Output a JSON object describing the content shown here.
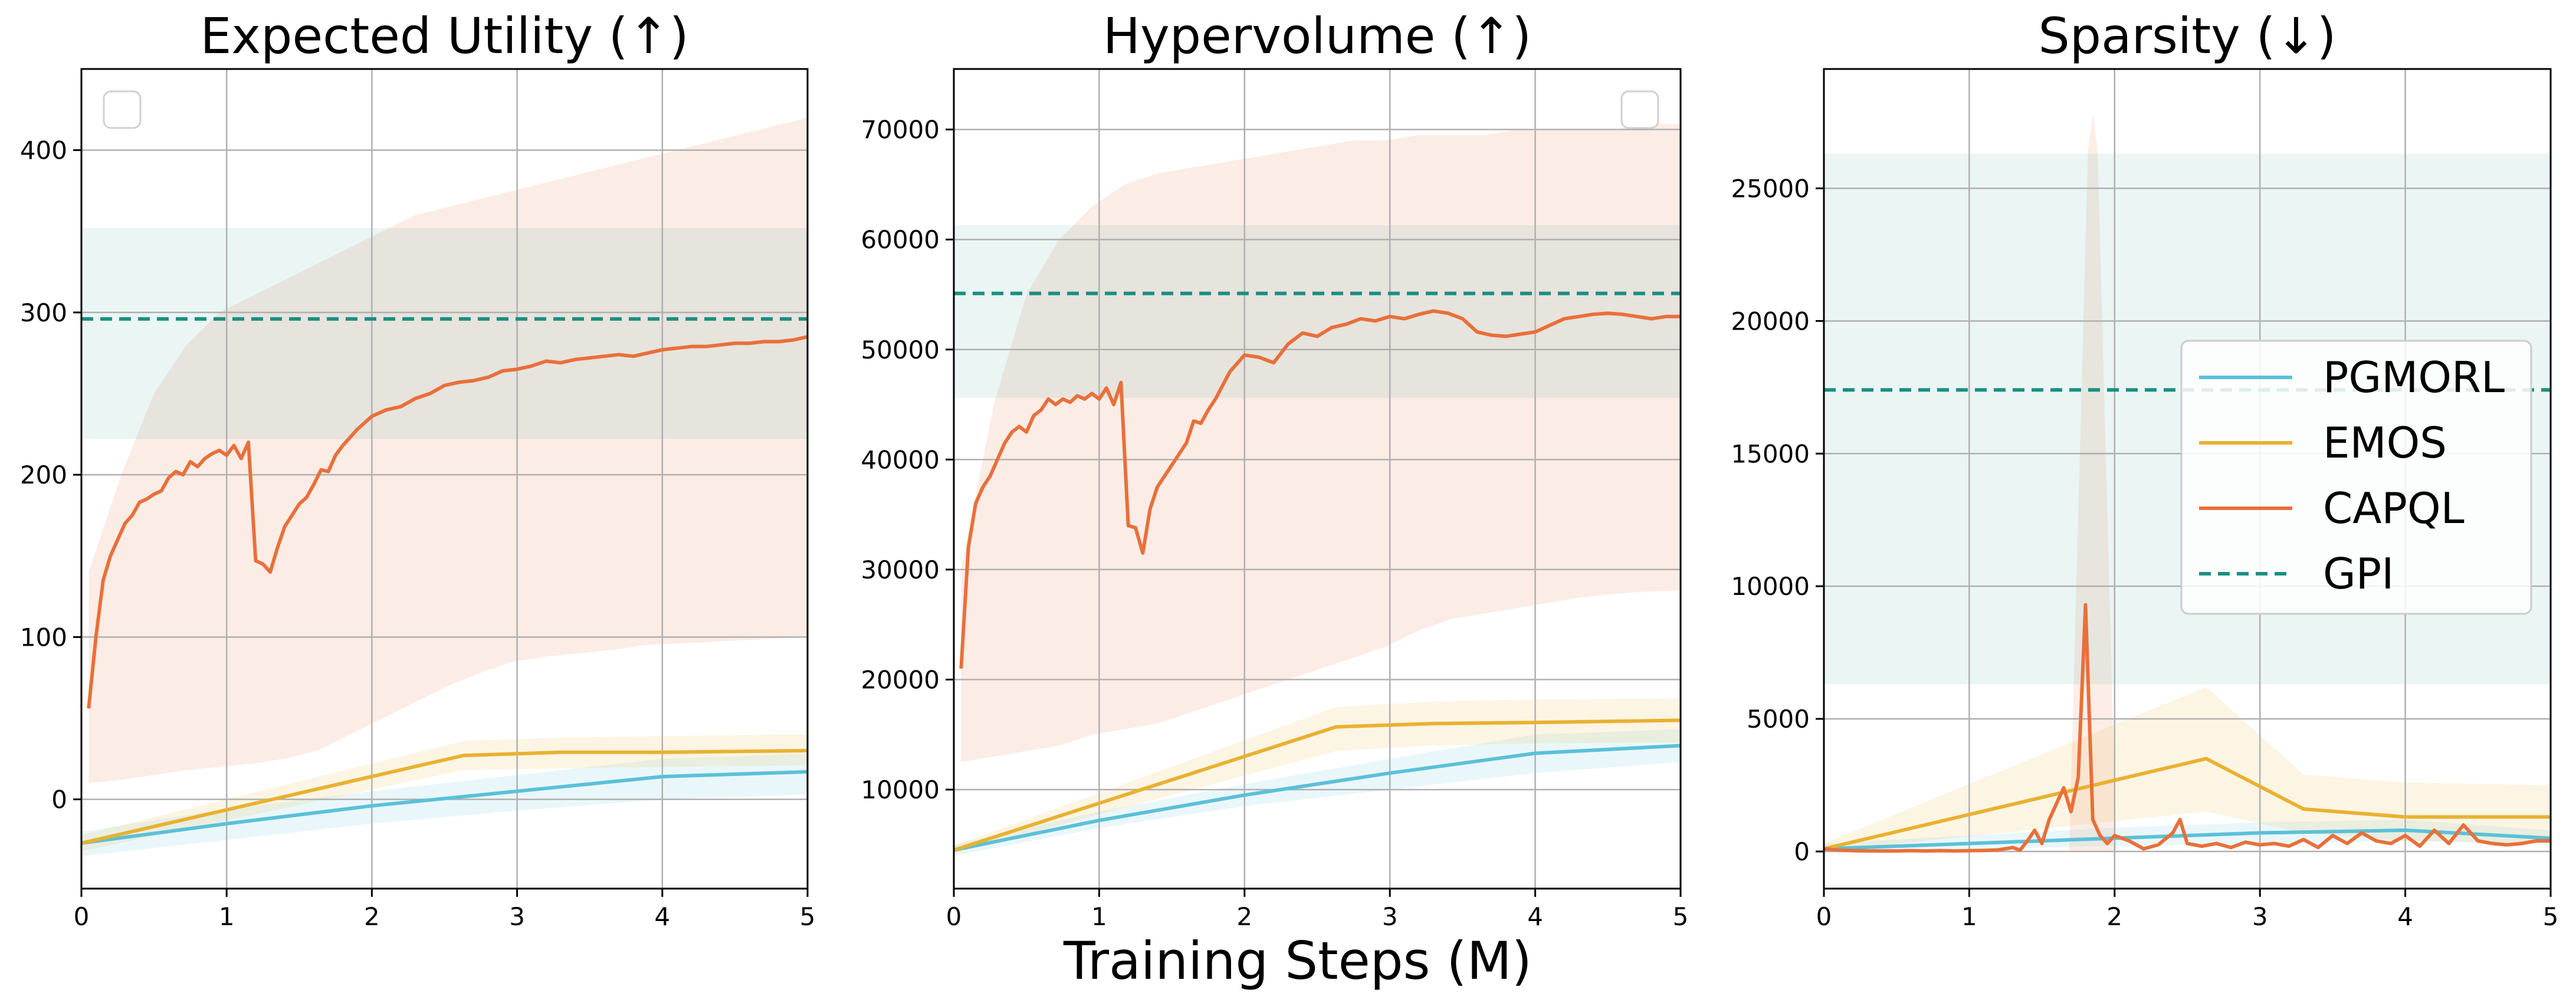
{
  "figure": {
    "xlabel": "Training Steps (M)"
  },
  "legend": {
    "entries": [
      {
        "label": "PGMORL",
        "color": "#5bc0d8",
        "style": "solid"
      },
      {
        "label": "EMOS",
        "color": "#e9b130",
        "style": "solid"
      },
      {
        "label": "CAPQL",
        "color": "#e8703a",
        "style": "solid"
      },
      {
        "label": "GPI",
        "color": "#1a8f80",
        "style": "dashed"
      }
    ]
  },
  "chart_data": [
    {
      "type": "line",
      "title": "Expected Utility (↑)",
      "xlabel": "",
      "ylabel": "",
      "xlim": [
        0,
        5
      ],
      "ylim": [
        -55,
        450
      ],
      "xticks": [
        0,
        1,
        2,
        3,
        4,
        5
      ],
      "yticks": [
        0,
        100,
        200,
        300,
        400
      ],
      "grid": true,
      "legend": "top-left (empty box)",
      "series": [
        {
          "name": "PGMORL",
          "color": "#5bc0d8",
          "x": [
            0.0,
            1.0,
            2.0,
            3.0,
            4.0,
            5.0
          ],
          "y": [
            -27,
            -15,
            -4,
            5,
            14,
            17
          ],
          "band_low": [
            -35,
            -25,
            -15,
            -7,
            0,
            3
          ],
          "band_high": [
            -20,
            -6,
            5,
            15,
            25,
            28
          ]
        },
        {
          "name": "EMOS",
          "color": "#e9b130",
          "x": [
            0.0,
            2.63,
            3.3,
            4.0,
            5.0
          ],
          "y": [
            -27,
            27,
            29,
            29,
            30
          ],
          "band_low": [
            -32,
            18,
            19,
            20,
            21
          ],
          "band_high": [
            -22,
            36,
            38,
            39,
            40
          ]
        },
        {
          "name": "CAPQL",
          "color": "#e8703a",
          "x": [
            0.05,
            0.1,
            0.15,
            0.2,
            0.25,
            0.3,
            0.35,
            0.4,
            0.45,
            0.5,
            0.55,
            0.6,
            0.65,
            0.7,
            0.75,
            0.8,
            0.85,
            0.9,
            0.95,
            1.0,
            1.05,
            1.1,
            1.15,
            1.2,
            1.25,
            1.3,
            1.35,
            1.4,
            1.45,
            1.5,
            1.55,
            1.6,
            1.65,
            1.7,
            1.75,
            1.8,
            1.9,
            2.0,
            2.1,
            2.2,
            2.3,
            2.4,
            2.5,
            2.6,
            2.7,
            2.8,
            2.9,
            3.0,
            3.1,
            3.2,
            3.3,
            3.4,
            3.5,
            3.6,
            3.7,
            3.8,
            3.9,
            4.0,
            4.1,
            4.2,
            4.3,
            4.4,
            4.5,
            4.6,
            4.7,
            4.8,
            4.9,
            5.0
          ],
          "y": [
            56,
            100,
            135,
            150,
            160,
            170,
            175,
            183,
            185,
            188,
            190,
            198,
            202,
            200,
            208,
            205,
            210,
            213,
            215,
            212,
            218,
            210,
            220,
            147,
            145,
            140,
            155,
            168,
            175,
            182,
            186,
            194,
            203,
            202,
            212,
            218,
            228,
            236,
            240,
            242,
            247,
            250,
            255,
            257,
            258,
            260,
            264,
            265,
            267,
            270,
            269,
            271,
            272,
            273,
            274,
            273,
            275,
            277,
            278,
            279,
            279,
            280,
            281,
            281,
            282,
            282,
            283,
            285
          ],
          "band_low": [
            10,
            12,
            15,
            18,
            20,
            22,
            25,
            30,
            40,
            50,
            60,
            70,
            78,
            85,
            88,
            90,
            92,
            95,
            96,
            97,
            98,
            99,
            100
          ],
          "band_high": [
            140,
            200,
            250,
            280,
            300,
            310,
            320,
            330,
            340,
            350,
            360,
            365,
            370,
            375,
            380,
            385,
            390,
            395,
            400,
            405,
            410,
            415,
            420
          ]
        },
        {
          "name": "GPI",
          "color": "#1a8f80",
          "style": "dashed",
          "y_const": 296,
          "band_low": 222,
          "band_high": 352
        }
      ]
    },
    {
      "type": "line",
      "title": "Hypervolume (↑)",
      "xlabel": "",
      "ylabel": "",
      "xlim": [
        0,
        5
      ],
      "ylim": [
        1000,
        75500
      ],
      "xticks": [
        0,
        1,
        2,
        3,
        4,
        5
      ],
      "yticks": [
        10000,
        20000,
        30000,
        40000,
        50000,
        60000,
        70000
      ],
      "grid": true,
      "legend": "top-right (empty box)",
      "series": [
        {
          "name": "PGMORL",
          "color": "#5bc0d8",
          "x": [
            0.0,
            1.0,
            2.0,
            3.0,
            4.0,
            5.0
          ],
          "y": [
            4500,
            7200,
            9500,
            11500,
            13300,
            14000
          ],
          "band_low": [
            4000,
            6500,
            8500,
            10000,
            11500,
            12500
          ],
          "band_high": [
            5000,
            8000,
            10500,
            12800,
            15000,
            15500
          ]
        },
        {
          "name": "EMOS",
          "color": "#e9b130",
          "x": [
            0.0,
            2.63,
            3.3,
            4.0,
            5.0
          ],
          "y": [
            4500,
            15700,
            16000,
            16100,
            16300
          ],
          "band_low": [
            4200,
            13500,
            14000,
            14200,
            14300
          ],
          "band_high": [
            4900,
            17500,
            18000,
            18200,
            18300
          ]
        },
        {
          "name": "CAPQL",
          "color": "#e8703a",
          "x": [
            0.05,
            0.1,
            0.15,
            0.2,
            0.25,
            0.3,
            0.35,
            0.4,
            0.45,
            0.5,
            0.55,
            0.6,
            0.65,
            0.7,
            0.75,
            0.8,
            0.85,
            0.9,
            0.95,
            1.0,
            1.05,
            1.1,
            1.15,
            1.2,
            1.25,
            1.3,
            1.35,
            1.4,
            1.45,
            1.5,
            1.55,
            1.6,
            1.65,
            1.7,
            1.75,
            1.8,
            1.9,
            2.0,
            2.1,
            2.2,
            2.3,
            2.4,
            2.5,
            2.6,
            2.7,
            2.8,
            2.9,
            3.0,
            3.1,
            3.2,
            3.3,
            3.4,
            3.5,
            3.6,
            3.7,
            3.8,
            3.9,
            4.0,
            4.1,
            4.2,
            4.3,
            4.4,
            4.5,
            4.6,
            4.7,
            4.8,
            4.9,
            5.0
          ],
          "y": [
            21000,
            32000,
            36000,
            37500,
            38500,
            40000,
            41500,
            42500,
            43000,
            42500,
            44000,
            44500,
            45500,
            45000,
            45500,
            45200,
            45800,
            45500,
            46000,
            45500,
            46500,
            45000,
            47000,
            34000,
            33800,
            31500,
            35500,
            37500,
            38500,
            39500,
            40500,
            41500,
            43500,
            43300,
            44500,
            45500,
            48000,
            49500,
            49300,
            48800,
            50500,
            51500,
            51200,
            52000,
            52300,
            52800,
            52600,
            53000,
            52800,
            53200,
            53500,
            53300,
            52800,
            51600,
            51300,
            51200,
            51400,
            51600,
            52200,
            52800,
            53000,
            53200,
            53300,
            53200,
            53000,
            52800,
            53000,
            53000
          ],
          "band_low": [
            12500,
            13000,
            13500,
            14000,
            15000,
            15500,
            16000,
            17000,
            18000,
            19000,
            20000,
            21000,
            22000,
            23000,
            24500,
            25500,
            26000,
            26500,
            27000,
            27500,
            27800,
            28000,
            28100
          ],
          "band_high": [
            30000,
            45000,
            55000,
            60000,
            63000,
            65000,
            66000,
            66500,
            67000,
            67500,
            68000,
            68500,
            69000,
            69000,
            69500,
            69500,
            69500,
            70000,
            70000,
            70000,
            70000,
            70500,
            70500
          ]
        },
        {
          "name": "GPI",
          "color": "#1a8f80",
          "style": "dashed",
          "y_const": 55100,
          "band_low": 45600,
          "band_high": 61300
        }
      ]
    },
    {
      "type": "line",
      "title": "Sparsity (↓)",
      "xlabel": "",
      "ylabel": "",
      "xlim": [
        0,
        5
      ],
      "ylim": [
        -1400,
        29500
      ],
      "xticks": [
        0,
        1,
        2,
        3,
        4,
        5
      ],
      "yticks": [
        0,
        5000,
        10000,
        15000,
        20000,
        25000
      ],
      "grid": true,
      "legend": "center-right",
      "series": [
        {
          "name": "PGMORL",
          "color": "#5bc0d8",
          "x": [
            0.0,
            1.0,
            2.0,
            3.0,
            4.0,
            5.0
          ],
          "y": [
            100,
            300,
            500,
            700,
            800,
            500
          ],
          "band_low": [
            0,
            100,
            200,
            300,
            400,
            250
          ],
          "band_high": [
            300,
            600,
            900,
            1100,
            1200,
            800
          ]
        },
        {
          "name": "EMOS",
          "color": "#e9b130",
          "x": [
            0.0,
            2.63,
            3.3,
            4.0,
            5.0
          ],
          "y": [
            100,
            3500,
            1600,
            1300,
            1300
          ],
          "band_low": [
            0,
            1500,
            700,
            400,
            300
          ],
          "band_high": [
            300,
            6200,
            2900,
            2600,
            2500
          ]
        },
        {
          "name": "CAPQL",
          "color": "#e8703a",
          "x": [
            0.0,
            0.1,
            0.2,
            0.3,
            0.4,
            0.5,
            0.6,
            0.7,
            0.8,
            0.9,
            1.0,
            1.1,
            1.2,
            1.3,
            1.35,
            1.4,
            1.45,
            1.5,
            1.55,
            1.6,
            1.65,
            1.7,
            1.75,
            1.8,
            1.85,
            1.9,
            1.95,
            2.0,
            2.1,
            2.2,
            2.3,
            2.4,
            2.45,
            2.5,
            2.6,
            2.7,
            2.8,
            2.9,
            3.0,
            3.1,
            3.2,
            3.3,
            3.4,
            3.5,
            3.6,
            3.7,
            3.8,
            3.9,
            4.0,
            4.1,
            4.2,
            4.3,
            4.4,
            4.5,
            4.6,
            4.7,
            4.8,
            4.9,
            5.0
          ],
          "y": [
            100,
            50,
            30,
            20,
            20,
            20,
            30,
            20,
            30,
            20,
            30,
            40,
            60,
            150,
            50,
            400,
            800,
            300,
            1200,
            1800,
            2400,
            1500,
            2800,
            9300,
            1200,
            600,
            300,
            600,
            400,
            100,
            250,
            700,
            1200,
            300,
            200,
            300,
            150,
            350,
            250,
            300,
            200,
            450,
            150,
            600,
            300,
            700,
            400,
            300,
            600,
            200,
            800,
            300,
            1000,
            400,
            300,
            250,
            300,
            400,
            400
          ],
          "spike_band_high": 27800
        },
        {
          "name": "GPI",
          "color": "#1a8f80",
          "style": "dashed",
          "y_const": 17400,
          "band_low": 6300,
          "band_high": 26300
        }
      ]
    }
  ]
}
